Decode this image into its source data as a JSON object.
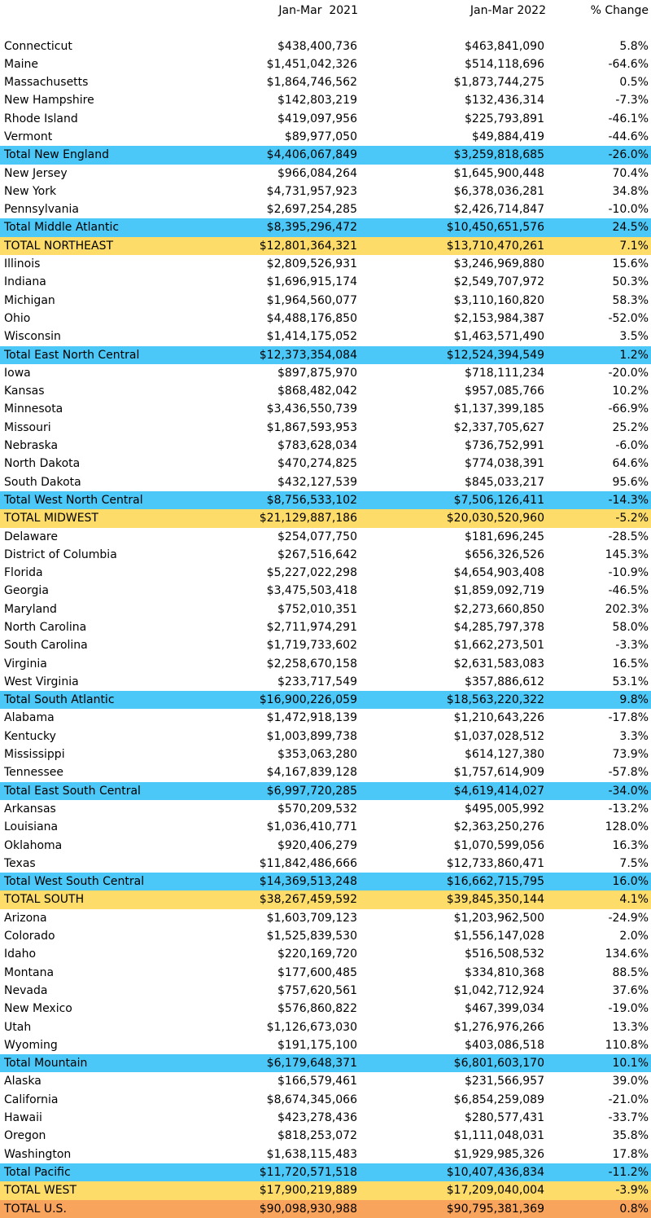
{
  "headers": {
    "col1": "Jan-Mar  2021",
    "col2": "Jan-Mar 2022",
    "col3": "% Change"
  },
  "rows": [
    {
      "name": "Connecticut",
      "v2021": "$438,400,736",
      "v2022": "$463,841,090",
      "change": "5.8%",
      "kind": "state"
    },
    {
      "name": "Maine",
      "v2021": "$1,451,042,326",
      "v2022": "$514,118,696",
      "change": "-64.6%",
      "kind": "state"
    },
    {
      "name": "Massachusetts",
      "v2021": "$1,864,746,562",
      "v2022": "$1,873,744,275",
      "change": "0.5%",
      "kind": "state"
    },
    {
      "name": "New Hampshire",
      "v2021": "$142,803,219",
      "v2022": "$132,436,314",
      "change": "-7.3%",
      "kind": "state"
    },
    {
      "name": "Rhode Island",
      "v2021": "$419,097,956",
      "v2022": "$225,793,891",
      "change": "-46.1%",
      "kind": "state"
    },
    {
      "name": "Vermont",
      "v2021": "$89,977,050",
      "v2022": "$49,884,419",
      "change": "-44.6%",
      "kind": "state"
    },
    {
      "name": "Total New England",
      "v2021": "$4,406,067,849",
      "v2022": "$3,259,818,685",
      "change": "-26.0%",
      "kind": "division"
    },
    {
      "name": "New Jersey",
      "v2021": "$966,084,264",
      "v2022": "$1,645,900,448",
      "change": "70.4%",
      "kind": "state"
    },
    {
      "name": "New York",
      "v2021": "$4,731,957,923",
      "v2022": "$6,378,036,281",
      "change": "34.8%",
      "kind": "state"
    },
    {
      "name": "Pennsylvania",
      "v2021": "$2,697,254,285",
      "v2022": "$2,426,714,847",
      "change": "-10.0%",
      "kind": "state"
    },
    {
      "name": "Total Middle Atlantic",
      "v2021": "$8,395,296,472",
      "v2022": "$10,450,651,576",
      "change": "24.5%",
      "kind": "division"
    },
    {
      "name": "TOTAL NORTHEAST",
      "v2021": "$12,801,364,321",
      "v2022": "$13,710,470,261",
      "change": "7.1%",
      "kind": "region"
    },
    {
      "name": "Illinois",
      "v2021": "$2,809,526,931",
      "v2022": "$3,246,969,880",
      "change": "15.6%",
      "kind": "state"
    },
    {
      "name": "Indiana",
      "v2021": "$1,696,915,174",
      "v2022": "$2,549,707,972",
      "change": "50.3%",
      "kind": "state"
    },
    {
      "name": "Michigan",
      "v2021": "$1,964,560,077",
      "v2022": "$3,110,160,820",
      "change": "58.3%",
      "kind": "state"
    },
    {
      "name": "Ohio",
      "v2021": "$4,488,176,850",
      "v2022": "$2,153,984,387",
      "change": "-52.0%",
      "kind": "state"
    },
    {
      "name": "Wisconsin",
      "v2021": "$1,414,175,052",
      "v2022": "$1,463,571,490",
      "change": "3.5%",
      "kind": "state"
    },
    {
      "name": "Total East North Central",
      "v2021": "$12,373,354,084",
      "v2022": "$12,524,394,549",
      "change": "1.2%",
      "kind": "division"
    },
    {
      "name": "Iowa",
      "v2021": "$897,875,970",
      "v2022": "$718,111,234",
      "change": "-20.0%",
      "kind": "state"
    },
    {
      "name": "Kansas",
      "v2021": "$868,482,042",
      "v2022": "$957,085,766",
      "change": "10.2%",
      "kind": "state"
    },
    {
      "name": "Minnesota",
      "v2021": "$3,436,550,739",
      "v2022": "$1,137,399,185",
      "change": "-66.9%",
      "kind": "state"
    },
    {
      "name": "Missouri",
      "v2021": "$1,867,593,953",
      "v2022": "$2,337,705,627",
      "change": "25.2%",
      "kind": "state"
    },
    {
      "name": "Nebraska",
      "v2021": "$783,628,034",
      "v2022": "$736,752,991",
      "change": "-6.0%",
      "kind": "state"
    },
    {
      "name": "North Dakota",
      "v2021": "$470,274,825",
      "v2022": "$774,038,391",
      "change": "64.6%",
      "kind": "state"
    },
    {
      "name": "South Dakota",
      "v2021": "$432,127,539",
      "v2022": "$845,033,217",
      "change": "95.6%",
      "kind": "state"
    },
    {
      "name": "Total West North Central",
      "v2021": "$8,756,533,102",
      "v2022": "$7,506,126,411",
      "change": "-14.3%",
      "kind": "division"
    },
    {
      "name": "TOTAL MIDWEST",
      "v2021": "$21,129,887,186",
      "v2022": "$20,030,520,960",
      "change": "-5.2%",
      "kind": "region"
    },
    {
      "name": "Delaware",
      "v2021": "$254,077,750",
      "v2022": "$181,696,245",
      "change": "-28.5%",
      "kind": "state"
    },
    {
      "name": "District of Columbia",
      "v2021": "$267,516,642",
      "v2022": "$656,326,526",
      "change": "145.3%",
      "kind": "state"
    },
    {
      "name": "Florida",
      "v2021": "$5,227,022,298",
      "v2022": "$4,654,903,408",
      "change": "-10.9%",
      "kind": "state"
    },
    {
      "name": "Georgia",
      "v2021": "$3,475,503,418",
      "v2022": "$1,859,092,719",
      "change": "-46.5%",
      "kind": "state"
    },
    {
      "name": "Maryland",
      "v2021": "$752,010,351",
      "v2022": "$2,273,660,850",
      "change": "202.3%",
      "kind": "state"
    },
    {
      "name": "North Carolina",
      "v2021": "$2,711,974,291",
      "v2022": "$4,285,797,378",
      "change": "58.0%",
      "kind": "state"
    },
    {
      "name": "South Carolina",
      "v2021": "$1,719,733,602",
      "v2022": "$1,662,273,501",
      "change": "-3.3%",
      "kind": "state"
    },
    {
      "name": "Virginia",
      "v2021": "$2,258,670,158",
      "v2022": "$2,631,583,083",
      "change": "16.5%",
      "kind": "state"
    },
    {
      "name": "West Virginia",
      "v2021": "$233,717,549",
      "v2022": "$357,886,612",
      "change": "53.1%",
      "kind": "state"
    },
    {
      "name": "Total South Atlantic",
      "v2021": "$16,900,226,059",
      "v2022": "$18,563,220,322",
      "change": "9.8%",
      "kind": "division"
    },
    {
      "name": "Alabama",
      "v2021": "$1,472,918,139",
      "v2022": "$1,210,643,226",
      "change": "-17.8%",
      "kind": "state"
    },
    {
      "name": "Kentucky",
      "v2021": "$1,003,899,738",
      "v2022": "$1,037,028,512",
      "change": "3.3%",
      "kind": "state"
    },
    {
      "name": "Mississippi",
      "v2021": "$353,063,280",
      "v2022": "$614,127,380",
      "change": "73.9%",
      "kind": "state"
    },
    {
      "name": "Tennessee",
      "v2021": "$4,167,839,128",
      "v2022": "$1,757,614,909",
      "change": "-57.8%",
      "kind": "state"
    },
    {
      "name": "Total East South Central",
      "v2021": "$6,997,720,285",
      "v2022": "$4,619,414,027",
      "change": "-34.0%",
      "kind": "division"
    },
    {
      "name": "Arkansas",
      "v2021": "$570,209,532",
      "v2022": "$495,005,992",
      "change": "-13.2%",
      "kind": "state"
    },
    {
      "name": "Louisiana",
      "v2021": "$1,036,410,771",
      "v2022": "$2,363,250,276",
      "change": "128.0%",
      "kind": "state"
    },
    {
      "name": "Oklahoma",
      "v2021": "$920,406,279",
      "v2022": "$1,070,599,056",
      "change": "16.3%",
      "kind": "state"
    },
    {
      "name": "Texas",
      "v2021": "$11,842,486,666",
      "v2022": "$12,733,860,471",
      "change": "7.5%",
      "kind": "state"
    },
    {
      "name": "Total West South Central",
      "v2021": "$14,369,513,248",
      "v2022": "$16,662,715,795",
      "change": "16.0%",
      "kind": "division"
    },
    {
      "name": "TOTAL SOUTH",
      "v2021": "$38,267,459,592",
      "v2022": "$39,845,350,144",
      "change": "4.1%",
      "kind": "region"
    },
    {
      "name": "Arizona",
      "v2021": "$1,603,709,123",
      "v2022": "$1,203,962,500",
      "change": "-24.9%",
      "kind": "state"
    },
    {
      "name": "Colorado",
      "v2021": "$1,525,839,530",
      "v2022": "$1,556,147,028",
      "change": "2.0%",
      "kind": "state"
    },
    {
      "name": "Idaho",
      "v2021": "$220,169,720",
      "v2022": "$516,508,532",
      "change": "134.6%",
      "kind": "state"
    },
    {
      "name": "Montana",
      "v2021": "$177,600,485",
      "v2022": "$334,810,368",
      "change": "88.5%",
      "kind": "state"
    },
    {
      "name": "Nevada",
      "v2021": "$757,620,561",
      "v2022": "$1,042,712,924",
      "change": "37.6%",
      "kind": "state"
    },
    {
      "name": "New Mexico",
      "v2021": "$576,860,822",
      "v2022": "$467,399,034",
      "change": "-19.0%",
      "kind": "state"
    },
    {
      "name": "Utah",
      "v2021": "$1,126,673,030",
      "v2022": "$1,276,976,266",
      "change": "13.3%",
      "kind": "state"
    },
    {
      "name": "Wyoming",
      "v2021": "$191,175,100",
      "v2022": "$403,086,518",
      "change": "110.8%",
      "kind": "state"
    },
    {
      "name": "Total Mountain",
      "v2021": "$6,179,648,371",
      "v2022": "$6,801,603,170",
      "change": "10.1%",
      "kind": "division"
    },
    {
      "name": "Alaska",
      "v2021": "$166,579,461",
      "v2022": "$231,566,957",
      "change": "39.0%",
      "kind": "state"
    },
    {
      "name": "California",
      "v2021": "$8,674,345,066",
      "v2022": "$6,854,259,089",
      "change": "-21.0%",
      "kind": "state"
    },
    {
      "name": "Hawaii",
      "v2021": "$423,278,436",
      "v2022": "$280,577,431",
      "change": "-33.7%",
      "kind": "state"
    },
    {
      "name": "Oregon",
      "v2021": "$818,253,072",
      "v2022": "$1,111,048,031",
      "change": "35.8%",
      "kind": "state"
    },
    {
      "name": "Washington",
      "v2021": "$1,638,115,483",
      "v2022": "$1,929,985,326",
      "change": "17.8%",
      "kind": "state"
    },
    {
      "name": "Total Pacific",
      "v2021": "$11,720,571,518",
      "v2022": "$10,407,436,834",
      "change": "-11.2%",
      "kind": "division"
    },
    {
      "name": "TOTAL WEST",
      "v2021": "$17,900,219,889",
      "v2022": "$17,209,040,004",
      "change": "-3.9%",
      "kind": "region"
    },
    {
      "name": "TOTAL U.S.",
      "v2021": "$90,098,930,988",
      "v2022": "$90,795,381,369",
      "change": "0.8%",
      "kind": "total"
    }
  ],
  "colors": {
    "division_row": "#4cc8f8",
    "region_row": "#fddc6a",
    "total_row": "#f9a45c"
  }
}
